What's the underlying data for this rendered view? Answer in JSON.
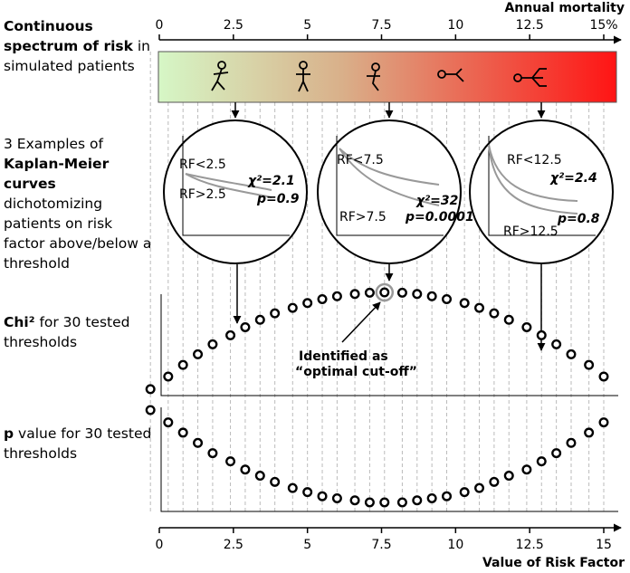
{
  "chart_data": {
    "type": "threshold-scan",
    "top_axis": {
      "title": "Annual mortality",
      "xlim": [
        0,
        15
      ],
      "xticks": [
        0,
        2.5,
        5,
        7.5,
        10,
        12.5,
        {
          "value": 15,
          "label": "15%"
        }
      ]
    },
    "bottom_axis": {
      "title": "Value of Risk Factor",
      "xlim": [
        0,
        15
      ],
      "xticks": [
        0,
        2.5,
        5,
        7.5,
        10,
        12.5,
        15
      ]
    },
    "left_labels": [
      {
        "bold": "Continuous spectrum of risk",
        "text": " in simulated patients"
      },
      {
        "pre": "3 Examples of ",
        "bold": "Kaplan-Meier curves",
        "text": " dichotomizing patients on risk factor above/below a threshold"
      },
      {
        "bold": "Chi²",
        "text": " for 30 tested thresholds"
      },
      {
        "bold": "p",
        "text": " value for 30 tested thresholds"
      }
    ],
    "examples": [
      {
        "below": "RF<2.5",
        "above": "RF>2.5",
        "chi2": "χ²=2.1",
        "p": "p=0.9"
      },
      {
        "below": "RF<7.5",
        "above": "RF>7.5",
        "chi2": "χ²=32",
        "p": "p=0.0001"
      },
      {
        "below": "RF<12.5",
        "above": "RF>12.5",
        "chi2": "χ²=2.4",
        "p": "p=0.8"
      }
    ],
    "annotation": [
      "Identified as",
      "“optimal cut-off”"
    ],
    "x": [
      -0.3,
      0.3,
      0.8,
      1.3,
      1.8,
      2.4,
      2.9,
      3.4,
      3.9,
      4.5,
      5.0,
      5.5,
      6.0,
      6.6,
      7.1,
      7.6,
      8.2,
      8.7,
      9.2,
      9.7,
      10.3,
      10.8,
      11.3,
      11.8,
      12.4,
      12.9,
      13.4,
      13.9,
      14.5,
      15.0
    ],
    "series": [
      {
        "name": "Chi²",
        "values": [
          2,
          5.9,
          9.5,
          12.8,
          15.9,
          18.7,
          21.2,
          23.5,
          25.5,
          27.2,
          28.7,
          29.9,
          30.8,
          31.5,
          31.9,
          32,
          31.9,
          31.5,
          30.8,
          29.9,
          28.7,
          27.2,
          25.5,
          23.5,
          21.2,
          18.7,
          15.9,
          12.8,
          9.5,
          5.9
        ]
      },
      {
        "name": "p",
        "values": [
          0.9,
          0.78,
          0.68,
          0.58,
          0.48,
          0.4,
          0.32,
          0.26,
          0.2,
          0.14,
          0.1,
          0.06,
          0.04,
          0.02,
          0.0001,
          0.0001,
          0.0001,
          0.02,
          0.04,
          0.06,
          0.1,
          0.14,
          0.2,
          0.26,
          0.32,
          0.4,
          0.48,
          0.58,
          0.68,
          0.78
        ]
      }
    ]
  }
}
